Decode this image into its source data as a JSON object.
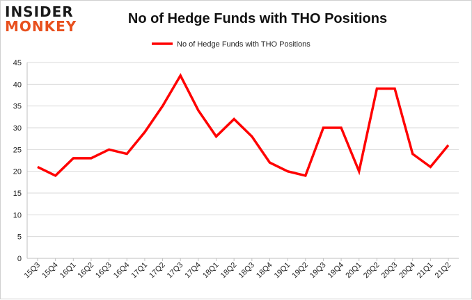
{
  "logo": {
    "line1": "INSIDER",
    "line2": "MONKEY"
  },
  "colors": {
    "series": "#ff0000",
    "grid": "#d9d9d9",
    "axis": "#bfbfbf",
    "logo_accent": "#e8501e"
  },
  "chart_data": {
    "type": "line",
    "title": "No of Hedge Funds with THO Positions",
    "xlabel": "",
    "ylabel": "",
    "ylim": [
      0,
      45
    ],
    "yticks": [
      0,
      5,
      10,
      15,
      20,
      25,
      30,
      35,
      40,
      45
    ],
    "grid": true,
    "legend_position": "top-center",
    "categories": [
      "15Q3",
      "15Q4",
      "16Q1",
      "16Q2",
      "16Q3",
      "16Q4",
      "17Q1",
      "17Q2",
      "17Q3",
      "17Q4",
      "18Q1",
      "18Q2",
      "18Q3",
      "18Q4",
      "19Q1",
      "19Q2",
      "19Q3",
      "19Q4",
      "20Q1",
      "20Q2",
      "20Q3",
      "20Q4",
      "21Q1",
      "21Q2"
    ],
    "series": [
      {
        "name": "No of Hedge Funds with THO Positions",
        "color": "#ff0000",
        "values": [
          21,
          19,
          23,
          23,
          25,
          24,
          29,
          35,
          42,
          34,
          28,
          32,
          28,
          22,
          20,
          19,
          30,
          30,
          20,
          39,
          39,
          24,
          21,
          26
        ]
      }
    ]
  }
}
